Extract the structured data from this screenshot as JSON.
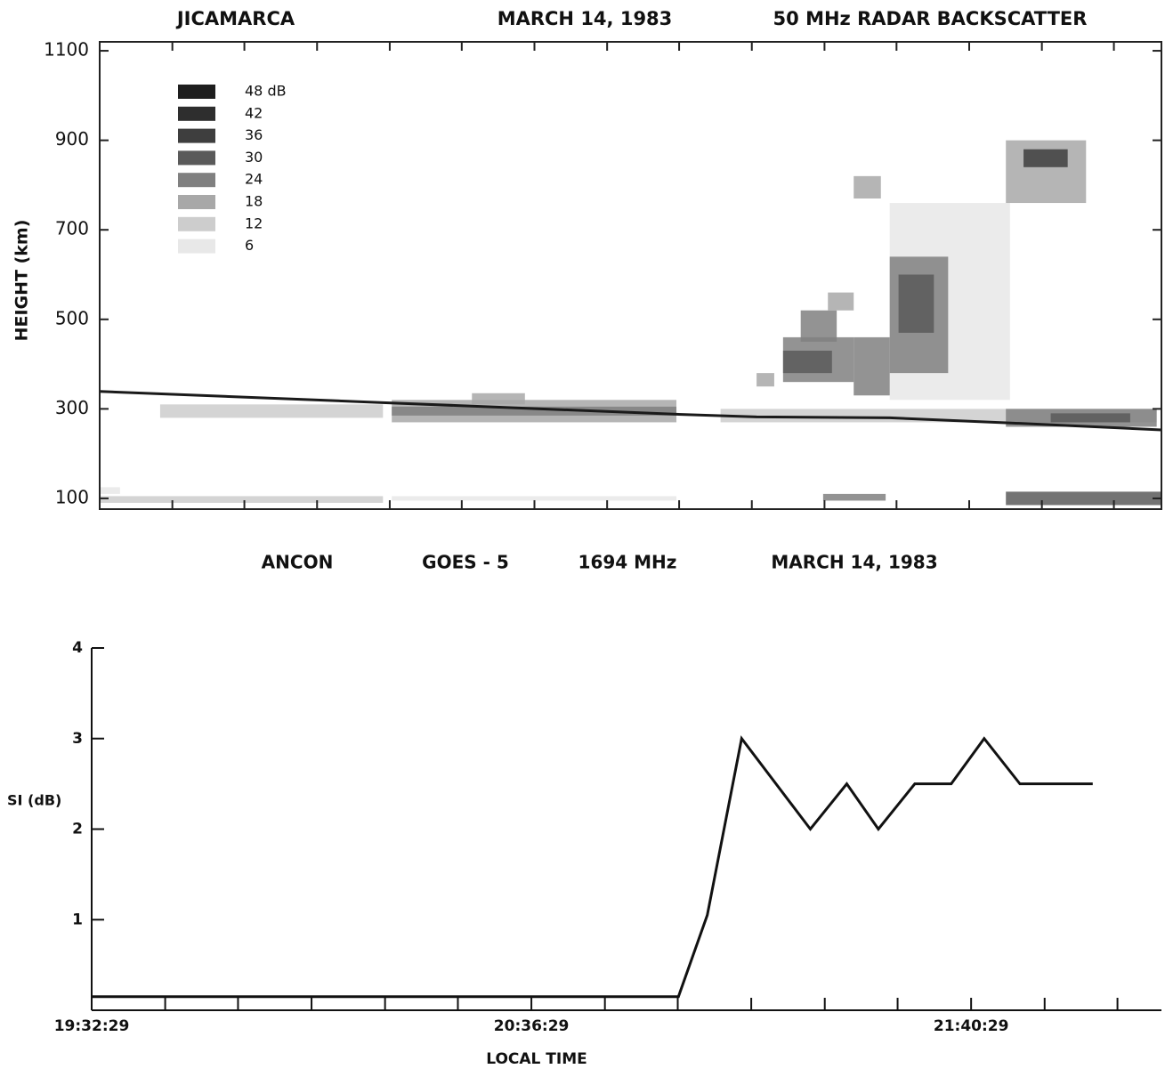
{
  "chart_data": [
    {
      "type": "heatmap",
      "title": [
        "JICAMARCA",
        "MARCH 14, 1983",
        "50 MHz  RADAR  BACKSCATTER"
      ],
      "y_label": "HEIGHT  (km)",
      "xlim": [
        0,
        156.3
      ],
      "xminorticks": [
        10.7,
        21.3,
        32,
        42.7,
        53.3,
        64,
        74.7,
        85.3,
        96,
        106.7,
        117.3,
        128,
        138.7,
        149.3
      ],
      "ylim": [
        76,
        1120
      ],
      "yticks": [
        100,
        300,
        500,
        700,
        900,
        1100
      ],
      "levels": [
        {
          "value": 48,
          "label": "48 dB"
        },
        42,
        36,
        30,
        24,
        18,
        12,
        6
      ],
      "colors": [
        "#1e1e1e",
        "#2e2e2e",
        "#3e3e3e",
        "#5a5a5a",
        "#808080",
        "#a8a8a8",
        "#cdcdcd",
        "#e8e8e8"
      ],
      "cells": [
        {
          "x": [
            8.9,
            41.7
          ],
          "y": [
            280,
            310
          ],
          "value": 12
        },
        {
          "x": [
            43,
            84.9
          ],
          "y": [
            270,
            320
          ],
          "value": 18
        },
        {
          "x": [
            43,
            84.9
          ],
          "y": [
            285,
            305
          ],
          "value": 24
        },
        {
          "x": [
            54.8,
            62.6
          ],
          "y": [
            310,
            335
          ],
          "value": 18
        },
        {
          "x": [
            91.4,
            155.6
          ],
          "y": [
            270,
            300
          ],
          "value": 12
        },
        {
          "x": [
            116.3,
            134
          ],
          "y": [
            320,
            760
          ],
          "value": 6
        },
        {
          "x": [
            133.4,
            155.6
          ],
          "y": [
            260,
            300
          ],
          "value": 24
        },
        {
          "x": [
            140,
            151.7
          ],
          "y": [
            270,
            290
          ],
          "value": 30
        },
        {
          "x": [
            116.3,
            124.9
          ],
          "y": [
            380,
            640
          ],
          "value": 24
        },
        {
          "x": [
            117.6,
            122.8
          ],
          "y": [
            470,
            600
          ],
          "value": 30
        },
        {
          "x": [
            111,
            116.3
          ],
          "y": [
            330,
            460
          ],
          "value": 24
        },
        {
          "x": [
            100.6,
            111
          ],
          "y": [
            360,
            460
          ],
          "value": 24
        },
        {
          "x": [
            100.6,
            107.8
          ],
          "y": [
            380,
            430
          ],
          "value": 30
        },
        {
          "x": [
            103.2,
            108.5
          ],
          "y": [
            450,
            520
          ],
          "value": 24
        },
        {
          "x": [
            96.7,
            99.3
          ],
          "y": [
            350,
            380
          ],
          "value": 18
        },
        {
          "x": [
            107.2,
            111
          ],
          "y": [
            520,
            560
          ],
          "value": 18
        },
        {
          "x": [
            133.4,
            145.2
          ],
          "y": [
            760,
            900
          ],
          "value": 18
        },
        {
          "x": [
            136,
            142.5
          ],
          "y": [
            840,
            880
          ],
          "value": 36
        },
        {
          "x": [
            111,
            115
          ],
          "y": [
            770,
            820
          ],
          "value": 18
        },
        {
          "x": [
            0,
            41.7
          ],
          "y": [
            90,
            105
          ],
          "value": 12
        },
        {
          "x": [
            0,
            3
          ],
          "y": [
            110,
            125
          ],
          "value": 6
        },
        {
          "x": [
            43,
            84.9
          ],
          "y": [
            95,
            105
          ],
          "value": 6
        },
        {
          "x": [
            106.5,
            115.7
          ],
          "y": [
            95,
            110
          ],
          "value": 24
        },
        {
          "x": [
            133.4,
            156.3
          ],
          "y": [
            85,
            115
          ],
          "value": 30
        }
      ],
      "line": {
        "color": "#1a1a1a",
        "x": [
          0,
          41.7,
          84.9,
          96.7,
          116.3,
          133.4,
          156.3
        ],
        "values": [
          339,
          314,
          288,
          282,
          280,
          269,
          253
        ]
      }
    },
    {
      "type": "line",
      "title": [
        "ANCON",
        "GOES - 5",
        "1694 MHz",
        "MARCH 14, 1983"
      ],
      "y_label": "SI (dB)",
      "x_label": "LOCAL TIME",
      "xlim": [
        0,
        155.7
      ],
      "xticks": [
        {
          "value": 0,
          "label": "19:32:29"
        },
        {
          "value": 64,
          "label": "20:36:29"
        },
        {
          "value": 128,
          "label": "21:40:29"
        }
      ],
      "xminorticks": [
        10.7,
        21.3,
        32,
        42.7,
        53.3,
        74.7,
        85.3,
        96,
        106.7,
        117.3,
        138.7,
        149.3
      ],
      "ylim": [
        0,
        4
      ],
      "yticks": [
        1,
        2,
        3,
        4
      ],
      "series": [
        {
          "color": "#111111",
          "x": [
            0,
            85.4,
            89.6,
            94.6,
            104.6,
            109.9,
            114.5,
            119.8,
            125.1,
            129.9,
            135.1,
            145.7
          ],
          "values": [
            0.15,
            0.15,
            1.05,
            3,
            2,
            2.5,
            2,
            2.5,
            2.5,
            3,
            2.5,
            2.5
          ]
        }
      ]
    }
  ]
}
